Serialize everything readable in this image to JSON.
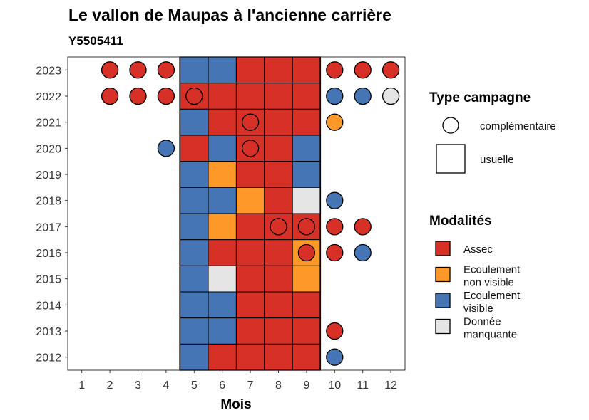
{
  "chart_data": {
    "type": "heatmap",
    "title": "Le vallon de Maupas à l'ancienne carrière",
    "subtitle": "Y5505411",
    "xlabel": "Mois",
    "ylabel": "",
    "x_ticks": [
      "1",
      "2",
      "3",
      "4",
      "5",
      "6",
      "7",
      "8",
      "9",
      "10",
      "11",
      "12"
    ],
    "y_ticks": [
      "2012",
      "2013",
      "2014",
      "2015",
      "2016",
      "2017",
      "2018",
      "2019",
      "2020",
      "2021",
      "2022",
      "2023"
    ],
    "legend_type": {
      "title": "Type campagne",
      "items": [
        {
          "key": "complementaire",
          "label": "complémentaire",
          "shape": "circle"
        },
        {
          "key": "usuelle",
          "label": "usuelle",
          "shape": "square"
        }
      ]
    },
    "legend_modalites": {
      "title": "Modalités",
      "items": [
        {
          "key": "A",
          "label1": "Assec",
          "label2": "",
          "color": "#D73027"
        },
        {
          "key": "N",
          "label1": "Ecoulement",
          "label2": "non visible",
          "color": "#FE9929"
        },
        {
          "key": "V",
          "label1": "Ecoulement",
          "label2": "visible",
          "color": "#4575B4"
        },
        {
          "key": "M",
          "label1": "Donnée",
          "label2": "manquante",
          "color": "#E5E5E5"
        }
      ]
    },
    "usuelle": [
      {
        "year": 2023,
        "m5": "V",
        "m6": "V",
        "m7": "A",
        "m8": "A",
        "m9": "A"
      },
      {
        "year": 2022,
        "m5": "A",
        "m6": "A",
        "m7": "A",
        "m8": "A",
        "m9": "A"
      },
      {
        "year": 2021,
        "m5": "V",
        "m6": "A",
        "m7": "A",
        "m8": "A",
        "m9": "A"
      },
      {
        "year": 2020,
        "m5": "A",
        "m6": "V",
        "m7": "A",
        "m8": "A",
        "m9": "V"
      },
      {
        "year": 2019,
        "m5": "V",
        "m6": "N",
        "m7": "A",
        "m8": "A",
        "m9": "V"
      },
      {
        "year": 2018,
        "m5": "V",
        "m6": "V",
        "m7": "N",
        "m8": "A",
        "m9": "M"
      },
      {
        "year": 2017,
        "m5": "V",
        "m6": "N",
        "m7": "A",
        "m8": "A",
        "m9": "A"
      },
      {
        "year": 2016,
        "m5": "V",
        "m6": "A",
        "m7": "A",
        "m8": "A",
        "m9": "N"
      },
      {
        "year": 2015,
        "m5": "V",
        "m6": "M",
        "m7": "A",
        "m8": "A",
        "m9": "N"
      },
      {
        "year": 2014,
        "m5": "V",
        "m6": "V",
        "m7": "A",
        "m8": "A",
        "m9": "A"
      },
      {
        "year": 2013,
        "m5": "V",
        "m6": "V",
        "m7": "A",
        "m8": "A",
        "m9": "A"
      },
      {
        "year": 2012,
        "m5": "V",
        "m6": "A",
        "m7": "A",
        "m8": "A",
        "m9": "A"
      }
    ],
    "complementaire": [
      {
        "year": 2023,
        "month": 2,
        "value": "A"
      },
      {
        "year": 2023,
        "month": 3,
        "value": "A"
      },
      {
        "year": 2023,
        "month": 4,
        "value": "A"
      },
      {
        "year": 2023,
        "month": 10,
        "value": "A"
      },
      {
        "year": 2023,
        "month": 11,
        "value": "A"
      },
      {
        "year": 2023,
        "month": 12,
        "value": "A"
      },
      {
        "year": 2022,
        "month": 2,
        "value": "A"
      },
      {
        "year": 2022,
        "month": 3,
        "value": "A"
      },
      {
        "year": 2022,
        "month": 4,
        "value": "A"
      },
      {
        "year": 2022,
        "month": 5,
        "value": "A"
      },
      {
        "year": 2022,
        "month": 10,
        "value": "V"
      },
      {
        "year": 2022,
        "month": 11,
        "value": "V"
      },
      {
        "year": 2022,
        "month": 12,
        "value": "M"
      },
      {
        "year": 2021,
        "month": 7,
        "value": "A"
      },
      {
        "year": 2021,
        "month": 10,
        "value": "N"
      },
      {
        "year": 2020,
        "month": 4,
        "value": "V"
      },
      {
        "year": 2020,
        "month": 7,
        "value": "A"
      },
      {
        "year": 2018,
        "month": 10,
        "value": "V"
      },
      {
        "year": 2017,
        "month": 8,
        "value": "A"
      },
      {
        "year": 2017,
        "month": 9,
        "value": "A"
      },
      {
        "year": 2017,
        "month": 10,
        "value": "A"
      },
      {
        "year": 2017,
        "month": 11,
        "value": "A"
      },
      {
        "year": 2016,
        "month": 9,
        "value": "A"
      },
      {
        "year": 2016,
        "month": 10,
        "value": "A"
      },
      {
        "year": 2016,
        "month": 11,
        "value": "V"
      },
      {
        "year": 2013,
        "month": 10,
        "value": "A"
      },
      {
        "year": 2012,
        "month": 10,
        "value": "V"
      }
    ]
  }
}
